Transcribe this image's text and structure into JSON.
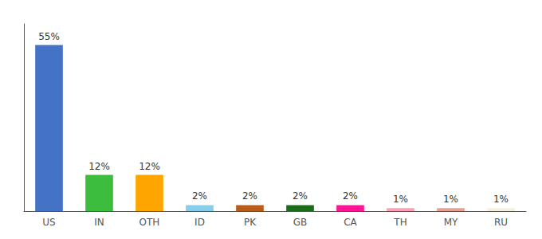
{
  "chart_data": {
    "type": "bar",
    "categories": [
      "US",
      "IN",
      "OTH",
      "ID",
      "PK",
      "GB",
      "CA",
      "TH",
      "MY",
      "RU"
    ],
    "values": [
      55,
      12,
      12,
      2,
      2,
      2,
      2,
      1,
      1,
      1
    ],
    "value_labels": [
      "55%",
      "12%",
      "12%",
      "2%",
      "2%",
      "2%",
      "2%",
      "1%",
      "1%",
      "1%"
    ],
    "colors": [
      "#4472C4",
      "#3DBD3D",
      "#FFA500",
      "#87CEEB",
      "#B85C1A",
      "#1A6B1A",
      "#FF1493",
      "#FF9EB5",
      "#E8A090",
      "#F5F0DC"
    ],
    "ylim": [
      0,
      62
    ],
    "data_labels": true,
    "tick_labels": "x",
    "grid": false
  }
}
